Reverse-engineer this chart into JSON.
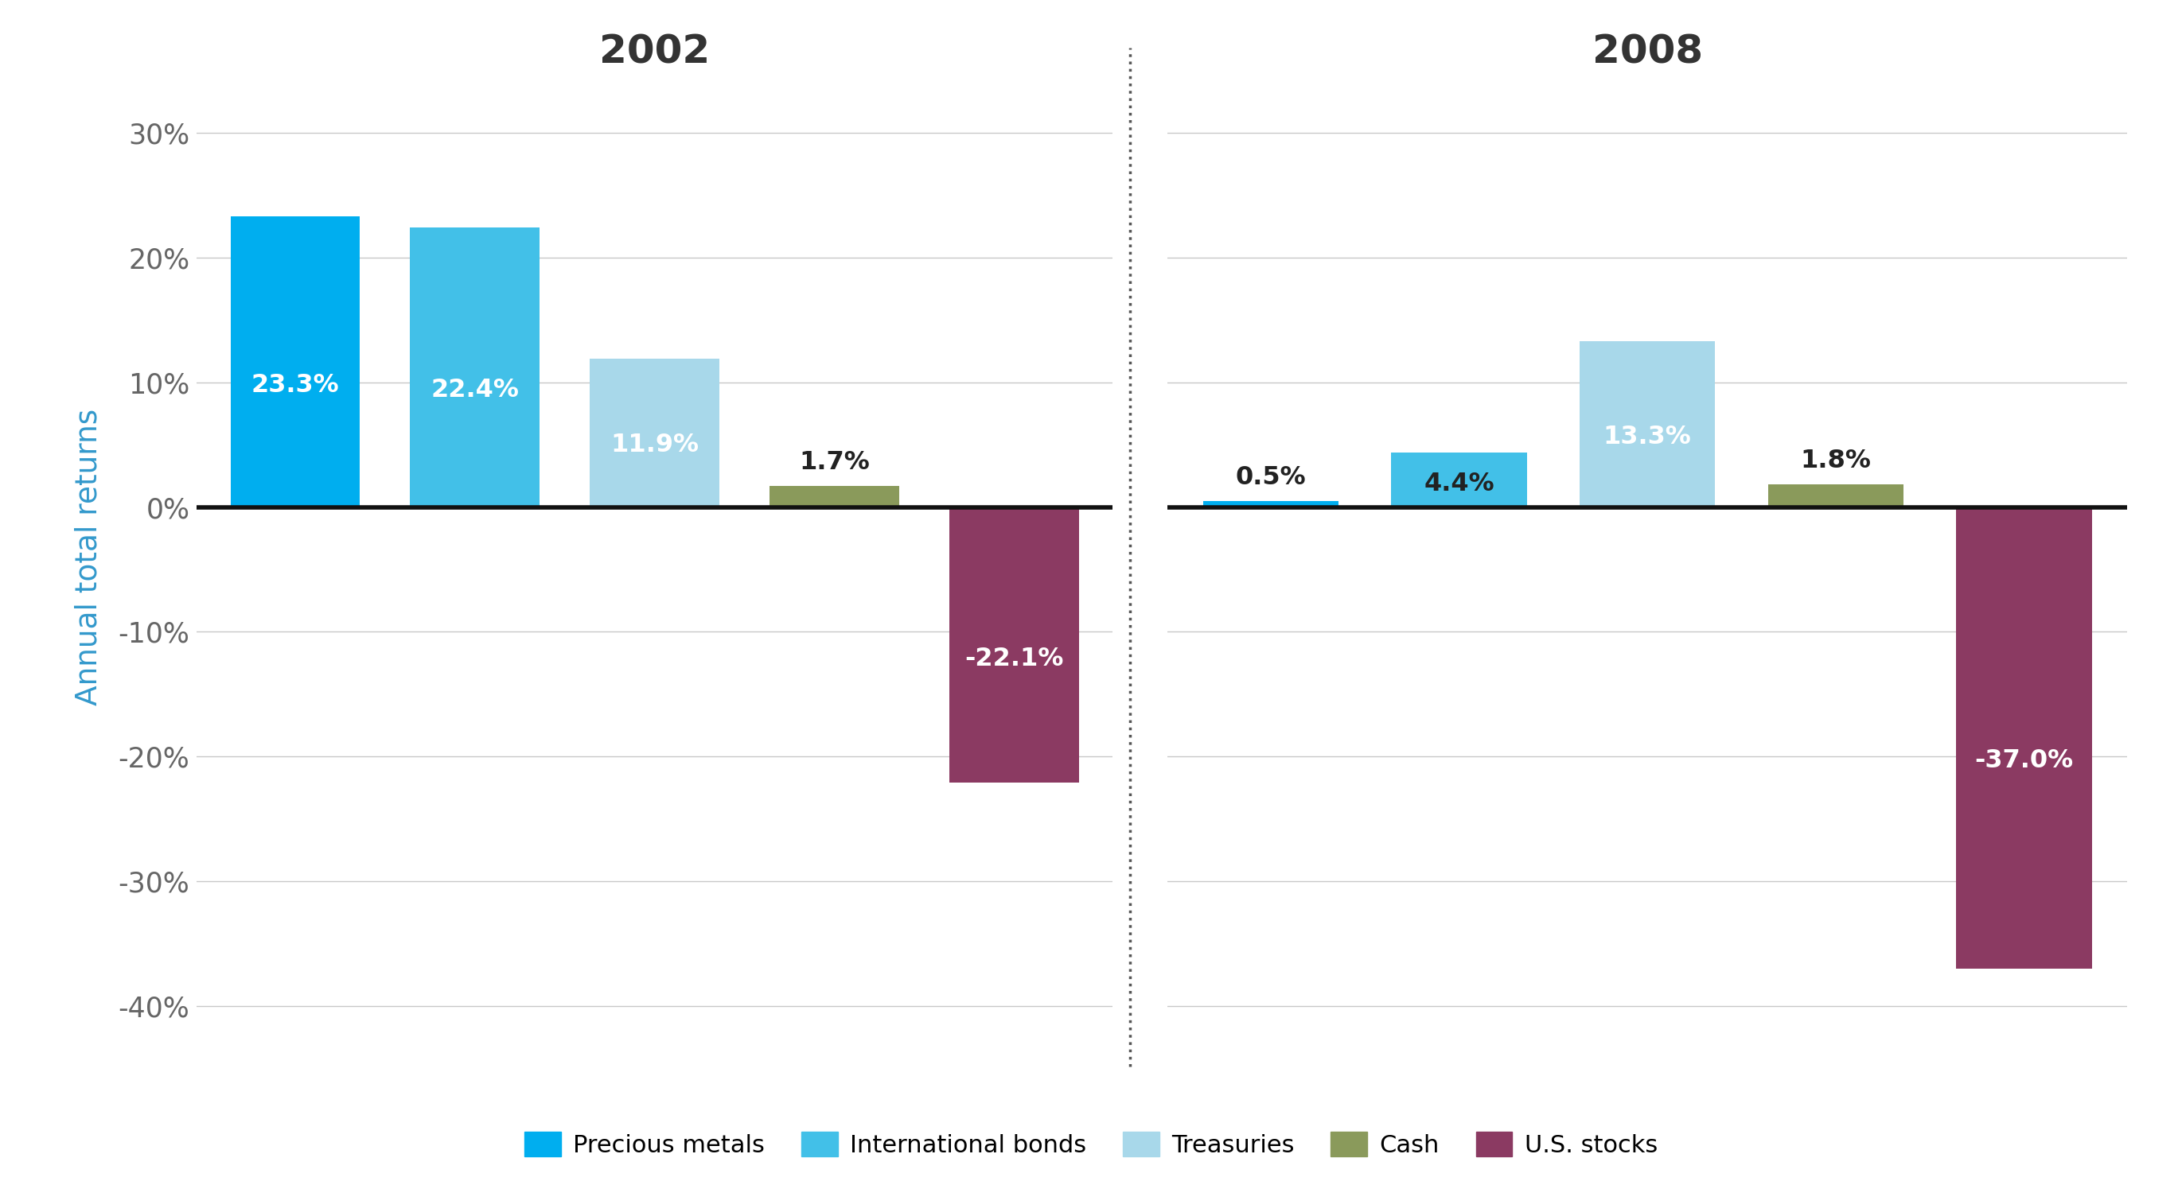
{
  "years": [
    "2002",
    "2008"
  ],
  "categories": [
    "Precious metals",
    "International bonds",
    "Treasuries",
    "Cash",
    "U.S. stocks"
  ],
  "values_2002": [
    23.3,
    22.4,
    11.9,
    1.7,
    -22.1
  ],
  "values_2008": [
    0.5,
    4.4,
    13.3,
    1.8,
    -37.0
  ],
  "colors": [
    "#00AEEF",
    "#42C0E8",
    "#A8D8EA",
    "#8A9A5B",
    "#8B3A62"
  ],
  "ylabel": "Annual total returns",
  "ylim": [
    -42,
    34
  ],
  "yticks": [
    -40,
    -30,
    -20,
    -10,
    0,
    10,
    20,
    30
  ],
  "ytick_labels": [
    "-40%",
    "-30%",
    "-20%",
    "-10%",
    "0%",
    "10%",
    "20%",
    "30%"
  ],
  "title_2002": "2002",
  "title_2008": "2008",
  "background_color": "#FFFFFF",
  "grid_color": "#C8C8C8",
  "zero_line_color": "#111111",
  "divider_color": "#666666",
  "title_color": "#333333",
  "ylabel_color": "#3399CC",
  "tick_label_color": "#666666"
}
